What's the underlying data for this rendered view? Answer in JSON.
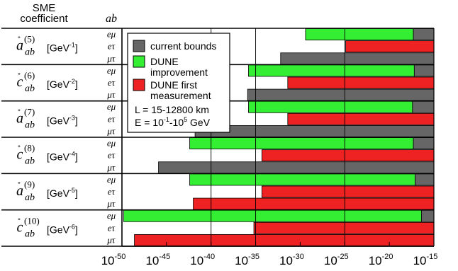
{
  "chart_data": {
    "type": "bar",
    "orientation": "horizontal",
    "x_scale": "log10",
    "xlim_exponent": [
      -50,
      -15
    ],
    "x_tick_base": "10",
    "x_tick_exponents": [
      "-50",
      "-45",
      "-40",
      "-35",
      "-30",
      "-25",
      "-20",
      "-15"
    ],
    "header_coefficient": "SME\ncoefficient",
    "header_flavor": "ab",
    "flavors": [
      "eμ",
      "eτ",
      "μτ"
    ],
    "groups": [
      {
        "sym": "a",
        "sup": "(5)",
        "sub": "ab",
        "unit": "GeV",
        "unit_exp": "-1"
      },
      {
        "sym": "c",
        "sup": "(6)",
        "sub": "ab",
        "unit": "GeV",
        "unit_exp": "-2"
      },
      {
        "sym": "a",
        "sup": "(7)",
        "sub": "ab",
        "unit": "GeV",
        "unit_exp": "-3"
      },
      {
        "sym": "c",
        "sup": "(8)",
        "sub": "ab",
        "unit": "GeV",
        "unit_exp": "-4"
      },
      {
        "sym": "a",
        "sup": "(9)",
        "sub": "ab",
        "unit": "GeV",
        "unit_exp": "-5"
      },
      {
        "sym": "c",
        "sup": "(10)",
        "sub": "ab",
        "unit": "GeV",
        "unit_exp": "-6"
      }
    ],
    "series_colors": {
      "current": "#666666",
      "improvement": "#33ee33",
      "first": "#ee2222"
    },
    "rows": [
      {
        "group": 0,
        "flavor": "eμ",
        "kind": "improvement",
        "start_exp": -29.4,
        "current_exp": -17.3
      },
      {
        "group": 0,
        "flavor": "eτ",
        "kind": "first",
        "start_exp": -24.9
      },
      {
        "group": 0,
        "flavor": "μτ",
        "kind": "current",
        "start_exp": -32.2
      },
      {
        "group": 1,
        "flavor": "eμ",
        "kind": "improvement",
        "start_exp": -35.8,
        "current_exp": -17.2
      },
      {
        "group": 1,
        "flavor": "eτ",
        "kind": "first",
        "start_exp": -31.4
      },
      {
        "group": 1,
        "flavor": "μτ",
        "kind": "current",
        "start_exp": -35.9
      },
      {
        "group": 2,
        "flavor": "eμ",
        "kind": "improvement",
        "start_exp": -35.8,
        "current_exp": -17.4
      },
      {
        "group": 2,
        "flavor": "eτ",
        "kind": "first",
        "start_exp": -31.4
      },
      {
        "group": 2,
        "flavor": "μτ",
        "kind": "current",
        "start_exp": -41.8
      },
      {
        "group": 3,
        "flavor": "eμ",
        "kind": "improvement",
        "start_exp": -42.4,
        "current_exp": -17.3
      },
      {
        "group": 3,
        "flavor": "eτ",
        "kind": "first",
        "start_exp": -34.3
      },
      {
        "group": 3,
        "flavor": "μτ",
        "kind": "current",
        "start_exp": -45.9
      },
      {
        "group": 4,
        "flavor": "eμ",
        "kind": "improvement",
        "start_exp": -42.4,
        "current_exp": -17.1
      },
      {
        "group": 4,
        "flavor": "eτ",
        "kind": "first",
        "start_exp": -34.3
      },
      {
        "group": 4,
        "flavor": "μτ",
        "kind": "first",
        "start_exp": -42.0
      },
      {
        "group": 5,
        "flavor": "eμ",
        "kind": "improvement",
        "start_exp": -49.8,
        "current_exp": -16.4
      },
      {
        "group": 5,
        "flavor": "eτ",
        "kind": "first",
        "start_exp": -35.2
      },
      {
        "group": 5,
        "flavor": "μτ",
        "kind": "first",
        "start_exp": -48.6
      }
    ],
    "legend": {
      "placement": "top-left-inside",
      "entries": [
        {
          "key": "current",
          "label": "current bounds"
        },
        {
          "key": "improvement",
          "label": "DUNE\nimprovement"
        },
        {
          "key": "first",
          "label": "DUNE first\nmeasurement"
        }
      ],
      "L": "L = 15-12800 km",
      "E_prefix": "E = 10",
      "E_exp1": "-1",
      "E_mid": "-10",
      "E_exp2": "5",
      "E_suffix": " GeV"
    },
    "vertical_gridlines_exp": [
      -40,
      -35,
      -25
    ]
  }
}
